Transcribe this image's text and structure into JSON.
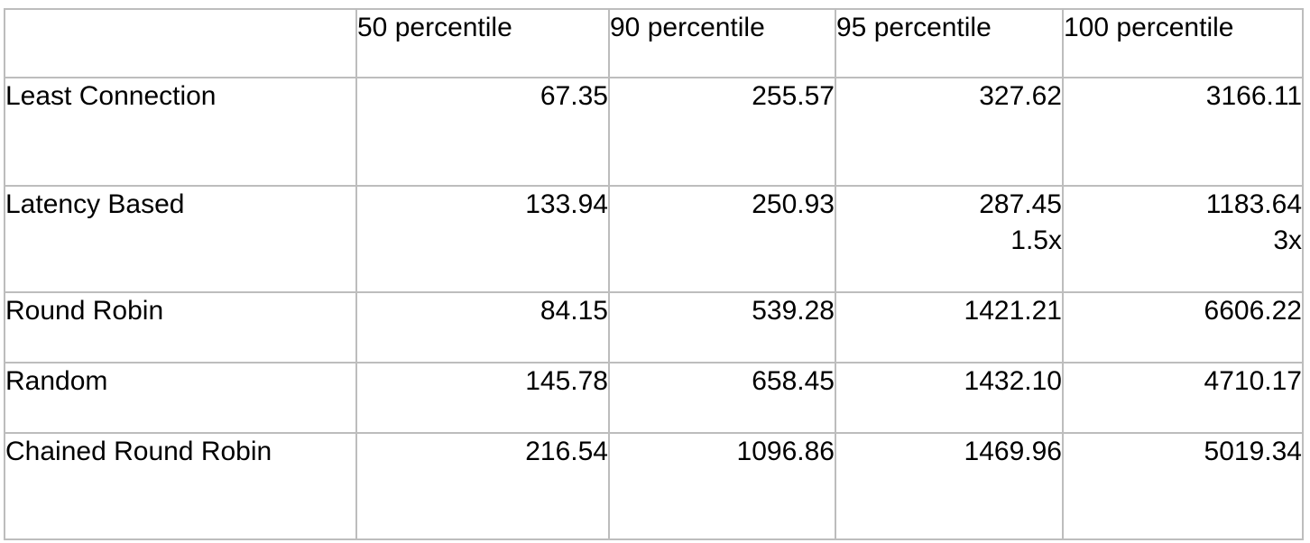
{
  "table": {
    "headers": [
      "",
      "50 percentile",
      "90 percentile",
      "95 percentile",
      "100 percentile"
    ],
    "rows": [
      {
        "label": "Least Connection",
        "cells": [
          {
            "value": "67.35",
            "bold": true
          },
          {
            "value": "255.57",
            "bold": false
          },
          {
            "value": "327.62",
            "bold": false
          },
          {
            "value": "3166.11",
            "bold": false
          }
        ]
      },
      {
        "label": "Latency Based",
        "cells": [
          {
            "value": "133.94",
            "bold": false
          },
          {
            "value": "250.93",
            "bold": true
          },
          {
            "value": "287.45",
            "note": "1.5x",
            "bold": true
          },
          {
            "value": "1183.64",
            "note": "3x",
            "bold": true
          }
        ]
      },
      {
        "label": "Round Robin",
        "cells": [
          {
            "value": "84.15",
            "bold": false
          },
          {
            "value": "539.28",
            "bold": false
          },
          {
            "value": "1421.21",
            "bold": false
          },
          {
            "value": "6606.22",
            "bold": false
          }
        ]
      },
      {
        "label": "Random",
        "cells": [
          {
            "value": "145.78",
            "bold": false
          },
          {
            "value": "658.45",
            "bold": false
          },
          {
            "value": "1432.10",
            "bold": false
          },
          {
            "value": "4710.17",
            "bold": false
          }
        ]
      },
      {
        "label": "Chained Round Robin",
        "cells": [
          {
            "value": "216.54",
            "bold": false
          },
          {
            "value": "1096.86",
            "bold": false
          },
          {
            "value": "1469.96",
            "bold": false
          },
          {
            "value": "5019.34",
            "bold": false
          }
        ]
      }
    ]
  },
  "colors": {
    "border": "#bdbdbd",
    "text": "#000000",
    "background": "#ffffff"
  }
}
